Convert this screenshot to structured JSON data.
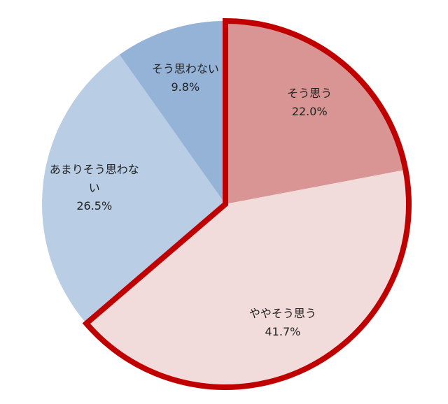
{
  "chart_data": {
    "type": "pie",
    "categories": [
      "そう思う",
      "ややそう思う",
      "あまりそう思わない",
      "そう思わない"
    ],
    "values": [
      22.0,
      41.7,
      26.5,
      9.8
    ],
    "value_labels": [
      "22.0%",
      "41.7%",
      "26.5%",
      "9.8%"
    ],
    "colors": [
      "#d99594",
      "#f2dcdb",
      "#b9cde5",
      "#95b3d7"
    ],
    "outline_color": "#c00000"
  }
}
